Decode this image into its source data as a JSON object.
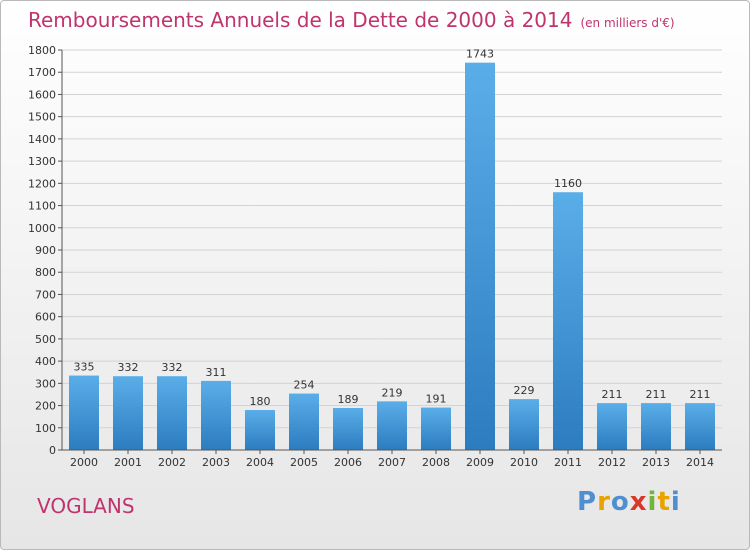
{
  "title": "Remboursements Annuels de la Dette de 2000 à 2014",
  "unit_note": "(en milliers d'€)",
  "commune": "VOGLANS",
  "logo": {
    "letters": [
      "P",
      "r",
      "o",
      "x",
      "i",
      "t",
      "i"
    ],
    "colors": [
      "#4f8fd0",
      "#e8a300",
      "#4f8fd0",
      "#d9372a",
      "#72b43c",
      "#e8a300",
      "#4f8fd0"
    ]
  },
  "chart_data": {
    "type": "bar",
    "categories": [
      "2000",
      "2001",
      "2002",
      "2003",
      "2004",
      "2005",
      "2006",
      "2007",
      "2008",
      "2009",
      "2010",
      "2011",
      "2012",
      "2013",
      "2014"
    ],
    "values": [
      335,
      332,
      332,
      311,
      180,
      254,
      189,
      219,
      191,
      1743,
      229,
      1160,
      211,
      211,
      211
    ],
    "ylim": [
      0,
      1800
    ],
    "yticks": [
      0,
      100,
      200,
      300,
      400,
      500,
      600,
      700,
      800,
      900,
      1000,
      1100,
      1200,
      1300,
      1400,
      1500,
      1600,
      1700,
      1800
    ],
    "grid": true,
    "bar_color_top": "#5aaee8",
    "bar_color_bottom": "#2c7cc0"
  }
}
